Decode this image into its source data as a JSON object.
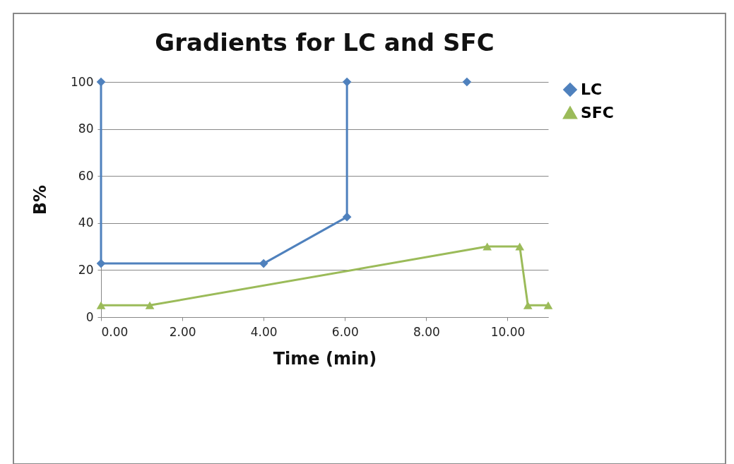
{
  "chart_data": {
    "type": "line",
    "title": "Gradients for LC and SFC",
    "xlabel": "Time (min)",
    "ylabel": "B%",
    "xlim": [
      0,
      11
    ],
    "xticks": [
      {
        "value": 0,
        "label": "0.00"
      },
      {
        "value": 2,
        "label": "2.00"
      },
      {
        "value": 4,
        "label": "4.00"
      },
      {
        "value": 6,
        "label": "6.00"
      },
      {
        "value": 8,
        "label": "8.00"
      },
      {
        "value": 10,
        "label": "10.00"
      }
    ],
    "ylim": [
      0,
      100
    ],
    "yticks": [
      0,
      20,
      40,
      60,
      80,
      100
    ],
    "grid": "y",
    "legend": "right",
    "series": [
      {
        "name": "LC",
        "color": "#4f81bd",
        "marker": "diamond",
        "x": [
          0,
          0,
          4,
          6.05,
          6.05,
          7.5,
          9
        ],
        "values": [
          100,
          22.8,
          22.8,
          42.6,
          100,
          null,
          100
        ]
      },
      {
        "name": "SFC",
        "color": "#9bbb59",
        "marker": "triangle",
        "x": [
          0,
          1.2,
          9.5,
          10.3,
          10.5,
          11
        ],
        "values": [
          5,
          5,
          30,
          30,
          5,
          5
        ]
      }
    ]
  }
}
